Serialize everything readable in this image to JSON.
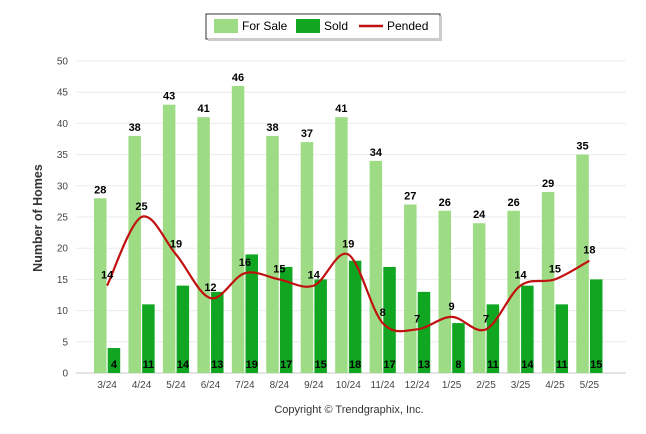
{
  "chart_data": {
    "type": "bar",
    "categories": [
      "3/24",
      "4/24",
      "5/24",
      "6/24",
      "7/24",
      "8/24",
      "9/24",
      "10/24",
      "11/24",
      "12/24",
      "1/25",
      "2/25",
      "3/25",
      "4/25",
      "5/25"
    ],
    "series": [
      {
        "name": "For Sale",
        "type": "bar",
        "color": "#9ddc84",
        "values": [
          28,
          38,
          43,
          41,
          46,
          38,
          37,
          41,
          34,
          27,
          26,
          24,
          26,
          29,
          35
        ]
      },
      {
        "name": "Sold",
        "type": "bar",
        "color": "#11a622",
        "values": [
          4,
          11,
          14,
          13,
          19,
          17,
          15,
          18,
          17,
          13,
          8,
          11,
          14,
          11,
          15
        ]
      },
      {
        "name": "Pended",
        "type": "line",
        "color": "#c01010",
        "values": [
          14,
          25,
          19,
          12,
          16,
          15,
          14,
          19,
          8,
          7,
          9,
          7,
          14,
          15,
          18
        ]
      }
    ],
    "ylabel": "Number of Homes",
    "xlabel": "",
    "ylim": [
      0,
      50
    ],
    "yticks": [
      0,
      5,
      10,
      15,
      20,
      25,
      30,
      35,
      40,
      45,
      50
    ],
    "legend_position": "top-center",
    "grid": true,
    "footer": "Copyright © Trendgraphix, Inc."
  }
}
